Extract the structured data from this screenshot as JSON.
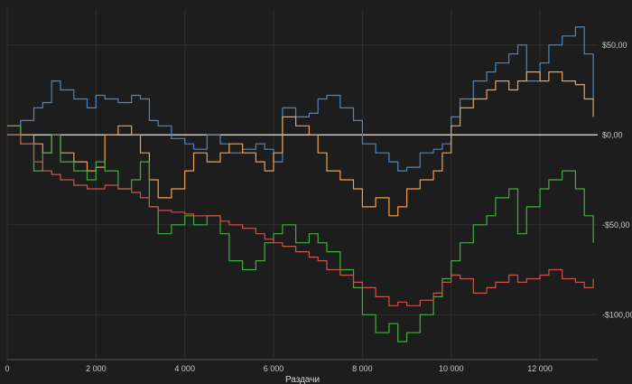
{
  "chart_data": {
    "type": "line",
    "title": "",
    "xlabel": "Раздачи",
    "ylabel": "",
    "xlim": [
      0,
      13300
    ],
    "ylim": [
      -125,
      70
    ],
    "grid": true,
    "legend": "none",
    "x_ticks": [
      {
        "value": 0,
        "label": "0"
      },
      {
        "value": 2000,
        "label": "2 000"
      },
      {
        "value": 4000,
        "label": "4 000"
      },
      {
        "value": 6000,
        "label": "6 000"
      },
      {
        "value": 8000,
        "label": "8 000"
      },
      {
        "value": 10000,
        "label": "10 000"
      },
      {
        "value": 12000,
        "label": "12 000"
      }
    ],
    "y_ticks": [
      {
        "value": 50,
        "label": "$50,00"
      },
      {
        "value": 0,
        "label": "$0,00"
      },
      {
        "value": -50,
        "label": "-$50,00"
      },
      {
        "value": -100,
        "label": "-$100,00"
      }
    ],
    "series": [
      {
        "color": "#4a86c5",
        "x": [
          0,
          300,
          600,
          800,
          1000,
          1200,
          1500,
          1800,
          2000,
          2200,
          2500,
          2800,
          3000,
          3200,
          3400,
          3700,
          4000,
          4200,
          4500,
          4800,
          5000,
          5300,
          5600,
          5800,
          6000,
          6200,
          6500,
          6800,
          7000,
          7200,
          7500,
          7800,
          8000,
          8300,
          8600,
          8800,
          9000,
          9300,
          9600,
          9800,
          10000,
          10200,
          10500,
          10800,
          11000,
          11300,
          11500,
          11700,
          12000,
          12200,
          12500,
          12800,
          13000,
          13200
        ],
        "y": [
          5,
          8,
          15,
          18,
          30,
          25,
          20,
          15,
          22,
          20,
          18,
          22,
          20,
          8,
          5,
          -2,
          -5,
          -8,
          0,
          -5,
          -10,
          -8,
          -5,
          -8,
          -15,
          15,
          10,
          12,
          20,
          22,
          15,
          8,
          -5,
          -10,
          -15,
          -20,
          -18,
          -10,
          -8,
          -5,
          10,
          20,
          30,
          35,
          40,
          45,
          50,
          30,
          40,
          50,
          55,
          60,
          45,
          20
        ]
      },
      {
        "color": "#f0a04b",
        "x": [
          0,
          300,
          600,
          800,
          1000,
          1200,
          1500,
          1800,
          2000,
          2200,
          2500,
          2800,
          3000,
          3200,
          3400,
          3700,
          4000,
          4200,
          4500,
          4800,
          5000,
          5300,
          5600,
          5800,
          6000,
          6200,
          6500,
          6800,
          7000,
          7200,
          7500,
          7800,
          8000,
          8300,
          8600,
          8800,
          9000,
          9300,
          9600,
          9800,
          10000,
          10200,
          10500,
          10800,
          11000,
          11300,
          11500,
          11700,
          12000,
          12200,
          12500,
          12800,
          13000,
          13200
        ],
        "y": [
          5,
          0,
          -5,
          -10,
          0,
          -10,
          -15,
          -20,
          -18,
          0,
          5,
          0,
          -10,
          -25,
          -35,
          -30,
          -20,
          -10,
          -15,
          -10,
          -5,
          -10,
          -15,
          -20,
          -10,
          10,
          5,
          0,
          -10,
          -20,
          -25,
          -30,
          -40,
          -35,
          -45,
          -40,
          -30,
          -25,
          -20,
          -10,
          5,
          15,
          20,
          25,
          30,
          25,
          30,
          35,
          30,
          35,
          30,
          28,
          20,
          10
        ]
      },
      {
        "color": "#3fae3f",
        "x": [
          0,
          300,
          600,
          800,
          1000,
          1200,
          1500,
          1800,
          2000,
          2200,
          2500,
          2800,
          3000,
          3200,
          3400,
          3700,
          4000,
          4200,
          4500,
          4800,
          5000,
          5300,
          5600,
          5800,
          6000,
          6200,
          6500,
          6800,
          7000,
          7200,
          7500,
          7800,
          8000,
          8300,
          8600,
          8800,
          9000,
          9300,
          9600,
          9800,
          10000,
          10200,
          10500,
          10800,
          11000,
          11300,
          11500,
          11700,
          12000,
          12200,
          12500,
          12800,
          13000,
          13200
        ],
        "y": [
          5,
          -5,
          -20,
          -10,
          0,
          -15,
          -20,
          -25,
          -15,
          -20,
          -30,
          -25,
          -15,
          -40,
          -55,
          -50,
          -45,
          -50,
          -45,
          -55,
          -70,
          -75,
          -70,
          -60,
          -55,
          -50,
          -60,
          -55,
          -60,
          -65,
          -75,
          -85,
          -100,
          -110,
          -105,
          -115,
          -110,
          -100,
          -90,
          -80,
          -70,
          -60,
          -50,
          -45,
          -35,
          -30,
          -55,
          -40,
          -30,
          -25,
          -20,
          -30,
          -45,
          -60
        ]
      },
      {
        "color": "#c9534f",
        "x": [
          0,
          300,
          600,
          800,
          1000,
          1200,
          1500,
          1800,
          2000,
          2200,
          2500,
          2800,
          3000,
          3200,
          3400,
          3700,
          4000,
          4200,
          4500,
          4800,
          5000,
          5300,
          5600,
          5800,
          6000,
          6200,
          6500,
          6800,
          7000,
          7200,
          7500,
          7800,
          8000,
          8300,
          8600,
          8800,
          9000,
          9300,
          9600,
          9800,
          10000,
          10200,
          10500,
          10800,
          11000,
          11300,
          11500,
          11700,
          12000,
          12200,
          12500,
          12800,
          13000,
          13200
        ],
        "y": [
          0,
          -5,
          -15,
          -20,
          -22,
          -25,
          -28,
          -30,
          -30,
          -28,
          -30,
          -32,
          -35,
          -40,
          -42,
          -43,
          -44,
          -45,
          -45,
          -48,
          -50,
          -52,
          -55,
          -58,
          -60,
          -62,
          -65,
          -68,
          -70,
          -75,
          -78,
          -82,
          -85,
          -90,
          -95,
          -93,
          -95,
          -92,
          -88,
          -82,
          -78,
          -80,
          -88,
          -85,
          -82,
          -78,
          -82,
          -80,
          -78,
          -75,
          -80,
          -82,
          -85,
          -80
        ]
      }
    ]
  }
}
